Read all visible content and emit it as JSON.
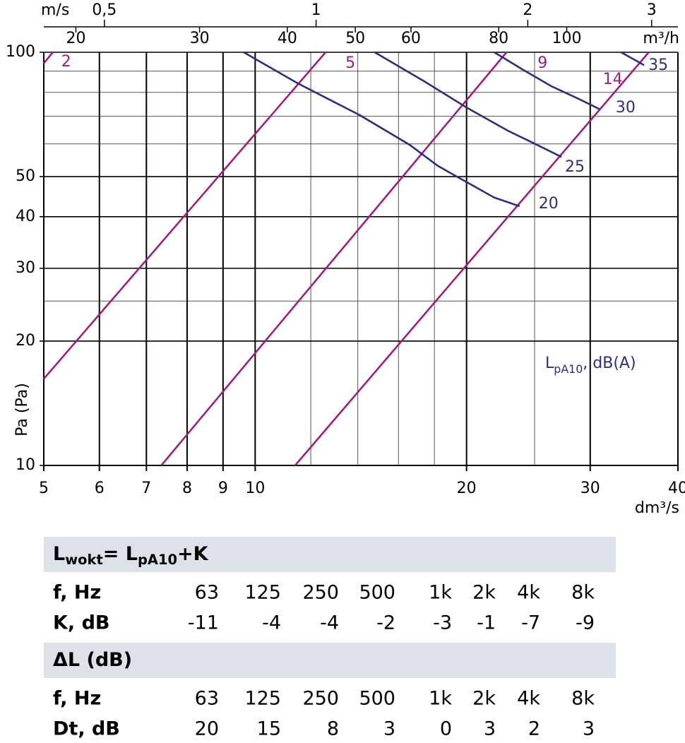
{
  "chart_data": {
    "type": "line",
    "x_scale": "log",
    "y_scale": "log",
    "xlabel": "dm³/s",
    "ylabel": "Pa (Pa)",
    "xlim": [
      5,
      40
    ],
    "ylim": [
      10,
      100
    ],
    "xticks": [
      5,
      6,
      7,
      8,
      9,
      10,
      20,
      30,
      40
    ],
    "yticks": [
      10,
      20,
      30,
      40,
      50,
      100
    ],
    "x_minor_grid": [
      12,
      14,
      16,
      18,
      25
    ],
    "y_minor_grid": [
      25,
      60,
      70,
      80,
      90
    ],
    "top_axes": [
      {
        "label": "m/s",
        "lim": [
          0.41,
          3.27
        ],
        "ticks": [
          {
            "value": 0.5,
            "label": "0,5"
          },
          1,
          2,
          3
        ]
      },
      {
        "label": "m³/h",
        "lim": [
          18,
          144
        ],
        "ticks": [
          20,
          30,
          40,
          50,
          60,
          80,
          100
        ]
      }
    ],
    "annotation": {
      "color": "#2e2e7a",
      "segments": [
        {
          "text": "L"
        },
        {
          "text": "pA10",
          "sub": true
        },
        {
          "text": ", dB(A)"
        }
      ]
    },
    "series": [
      {
        "name": "2",
        "color": "#9b1f7e",
        "x": [
          5,
          5.15
        ],
        "values": [
          94,
          100
        ]
      },
      {
        "name": "5",
        "color": "#9b1f7e",
        "x": [
          5,
          12.6
        ],
        "values": [
          16.2,
          100
        ]
      },
      {
        "name": "9",
        "color": "#9b1f7e",
        "x": [
          7.35,
          22.8
        ],
        "values": [
          10,
          100
        ]
      },
      {
        "name": "14",
        "color": "#9b1f7e",
        "x": [
          11.4,
          36.35
        ],
        "values": [
          10,
          100
        ]
      },
      {
        "name": "20",
        "color": "#2e2e7a",
        "x": [
          9.63,
          11.5,
          14.1,
          16.6,
          18.2,
          20.0,
          21.9,
          23.8
        ],
        "values": [
          100,
          84.1,
          70.4,
          59.7,
          53.1,
          48.5,
          44.5,
          42.4
        ]
      },
      {
        "name": "25",
        "color": "#2e2e7a",
        "x": [
          14.8,
          17.4,
          20.0,
          22.9,
          25.2,
          27.3
        ],
        "values": [
          100,
          85.1,
          73.5,
          64.6,
          59.7,
          55.8
        ]
      },
      {
        "name": "30",
        "color": "#2e2e7a",
        "x": [
          21.9,
          24.0,
          26.4,
          28.9,
          31.0
        ],
        "values": [
          100,
          91.0,
          82.8,
          77.1,
          72.7
        ]
      },
      {
        "name": "35",
        "color": "#2e2e7a",
        "x": [
          33.2,
          35.8
        ],
        "values": [
          100,
          93.1
        ]
      }
    ]
  },
  "tables": [
    {
      "title": {
        "segments": [
          {
            "text": "L"
          },
          {
            "text": "wokt",
            "sub": true
          },
          {
            "text": "= L"
          },
          {
            "text": "pA10",
            "sub": true
          },
          {
            "text": "+K"
          }
        ]
      },
      "rows": [
        [
          "f, Hz",
          "63",
          "125",
          "250",
          "500",
          "1k",
          "2k",
          "4k",
          "8k"
        ],
        [
          "K, dB",
          -11,
          -4,
          -4,
          -2,
          -3,
          -1,
          -7,
          -9
        ]
      ]
    },
    {
      "title": {
        "segments": [
          {
            "text": "ΔL (dB)"
          }
        ]
      },
      "rows": [
        [
          "f, Hz",
          "63",
          "125",
          "250",
          "500",
          "1k",
          "2k",
          "4k",
          "8k"
        ],
        [
          "Dt, dB",
          20,
          15,
          8,
          3,
          0,
          3,
          2,
          3
        ]
      ]
    }
  ]
}
